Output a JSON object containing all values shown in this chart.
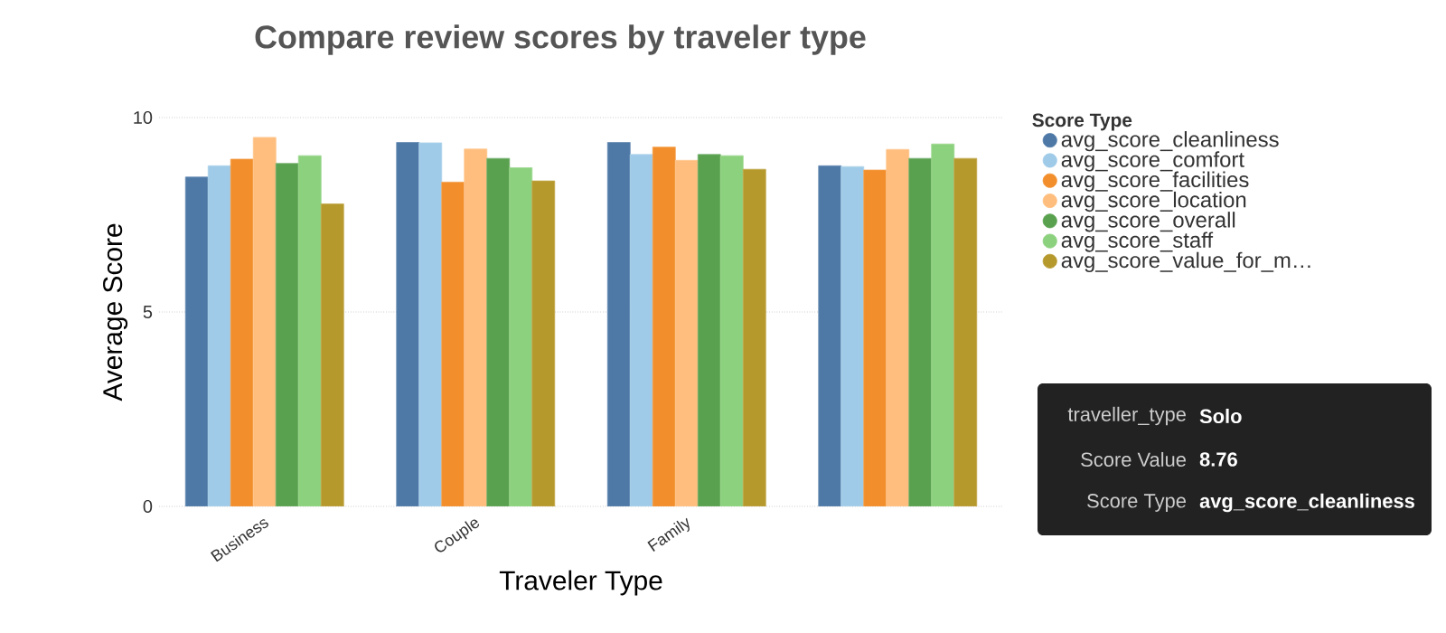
{
  "chart_data": {
    "type": "bar",
    "title": "Compare review scores by traveler type",
    "xlabel": "Traveler Type",
    "ylabel": "Average Score",
    "legend_title": "Score Type",
    "categories": [
      "Business",
      "Couple",
      "Family",
      null
    ],
    "series": [
      {
        "name": "avg_score_cleanliness",
        "color": "#4e79a7",
        "values": [
          8.47,
          9.36,
          9.36,
          8.76
        ]
      },
      {
        "name": "avg_score_comfort",
        "color": "#a0cbe8",
        "values": [
          8.76,
          9.35,
          9.05,
          8.74
        ]
      },
      {
        "name": "avg_score_facilities",
        "color": "#f28e2b",
        "values": [
          8.93,
          8.34,
          9.24,
          8.65
        ]
      },
      {
        "name": "avg_score_location",
        "color": "#ffbe7d",
        "values": [
          9.49,
          9.19,
          8.9,
          9.18
        ]
      },
      {
        "name": "avg_score_overall",
        "color": "#59a14f",
        "values": [
          8.82,
          8.95,
          9.05,
          8.95
        ]
      },
      {
        "name": "avg_score_staff",
        "color": "#8cd17d",
        "values": [
          9.02,
          8.71,
          9.02,
          9.32
        ]
      },
      {
        "name": "avg_score_value_for_m…",
        "color": "#b6992d",
        "values": [
          7.78,
          8.37,
          8.67,
          8.95
        ]
      }
    ],
    "ylim": [
      0,
      10
    ],
    "yticks": [
      0,
      5,
      10
    ],
    "grid": "y",
    "legend": "right",
    "marker": "circle",
    "annotations": [
      "traveller_type",
      "Solo",
      "Score Value",
      "8.76",
      "Score Type",
      "avg_score_cleanliness"
    ]
  }
}
